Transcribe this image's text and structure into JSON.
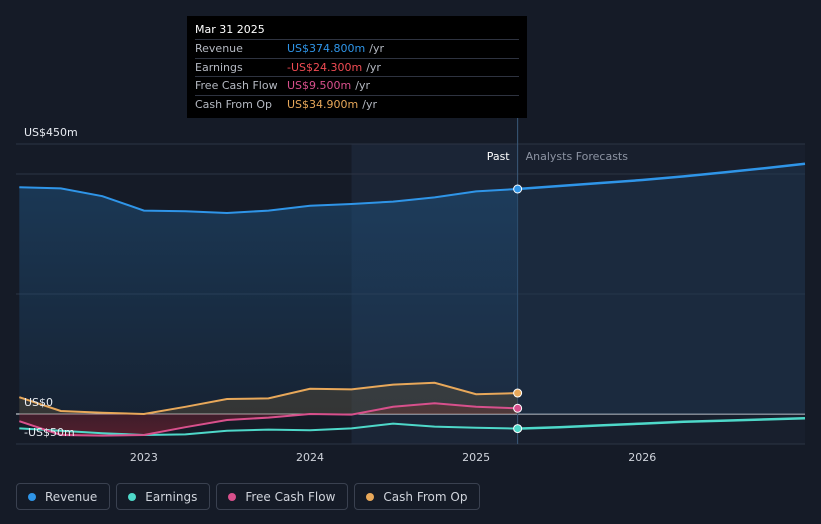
{
  "tooltip": {
    "date": "Mar 31 2025",
    "rows": [
      {
        "label": "Revenue",
        "value": "US$374.800m",
        "unit": "/yr",
        "color": "#2f95e8"
      },
      {
        "label": "Earnings",
        "value": "-US$24.300m",
        "unit": "/yr",
        "color": "#f04b53"
      },
      {
        "label": "Free Cash Flow",
        "value": "US$9.500m",
        "unit": "/yr",
        "color": "#d8508c"
      },
      {
        "label": "Cash From Op",
        "value": "US$34.900m",
        "unit": "/yr",
        "color": "#e8a85a"
      }
    ]
  },
  "chart_data": {
    "type": "line",
    "x_ticks": [
      2023,
      2024,
      2025,
      2026
    ],
    "x_range": [
      2022.23,
      2026.98
    ],
    "y_range": [
      -50,
      450
    ],
    "y_labels": [
      "US$450m",
      "US$0",
      "-US$50m"
    ],
    "past_label": "Past",
    "forecast_label": "Analysts Forecasts",
    "highlight_start": 2024.25,
    "divider_x": 2025.25,
    "series": [
      {
        "name": "Revenue",
        "color": "#2f95e8",
        "fill": true,
        "x": [
          2022.25,
          2022.5,
          2022.75,
          2023.0,
          2023.25,
          2023.5,
          2023.75,
          2024.0,
          2024.25,
          2024.5,
          2024.75,
          2025.0,
          2025.25
        ],
        "values": [
          378,
          376,
          363,
          339,
          338,
          335,
          339,
          347,
          350,
          354,
          361,
          371,
          375
        ],
        "forecast_x": [
          2025.25,
          2025.5,
          2025.75,
          2026.0,
          2026.25,
          2026.5,
          2026.75,
          2026.98
        ],
        "forecast_values": [
          375,
          380,
          385,
          390,
          396,
          403,
          410,
          417
        ]
      },
      {
        "name": "Earnings",
        "color": "#4ed8c9",
        "fill": false,
        "x": [
          2022.25,
          2022.5,
          2022.75,
          2023.0,
          2023.25,
          2023.5,
          2023.75,
          2024.0,
          2024.25,
          2024.5,
          2024.75,
          2025.0,
          2025.25
        ],
        "values": [
          -24,
          -28,
          -32,
          -35,
          -34,
          -28,
          -26,
          -27,
          -24,
          -16,
          -21,
          -23,
          -24.3
        ],
        "forecast_x": [
          2025.25,
          2025.5,
          2025.75,
          2026.0,
          2026.25,
          2026.5,
          2026.75,
          2026.98
        ],
        "forecast_values": [
          -24.3,
          -22,
          -19,
          -16,
          -13,
          -11,
          -9,
          -7
        ]
      },
      {
        "name": "Free Cash Flow",
        "color": "#d8508c",
        "fill": false,
        "x": [
          2022.25,
          2022.5,
          2022.75,
          2023.0,
          2023.25,
          2023.5,
          2023.75,
          2024.0,
          2024.25,
          2024.5,
          2024.75,
          2025.0,
          2025.25
        ],
        "values": [
          -12,
          -35,
          -36,
          -35,
          -22,
          -10,
          -6,
          0,
          -1,
          12,
          18,
          12,
          9.5
        ],
        "forecast_x": [],
        "forecast_values": []
      },
      {
        "name": "Cash From Op",
        "color": "#e8a85a",
        "fill": false,
        "x": [
          2022.25,
          2022.5,
          2022.75,
          2023.0,
          2023.25,
          2023.5,
          2023.75,
          2024.0,
          2024.25,
          2024.5,
          2024.75,
          2025.0,
          2025.25
        ],
        "values": [
          28,
          5,
          2,
          0,
          12,
          25,
          26,
          42,
          41,
          49,
          52,
          33,
          34.9
        ],
        "forecast_x": [],
        "forecast_values": []
      }
    ]
  },
  "legend": [
    {
      "label": "Revenue",
      "color": "#2f95e8"
    },
    {
      "label": "Earnings",
      "color": "#4ed8c9"
    },
    {
      "label": "Free Cash Flow",
      "color": "#d8508c"
    },
    {
      "label": "Cash From Op",
      "color": "#e8a85a"
    }
  ]
}
